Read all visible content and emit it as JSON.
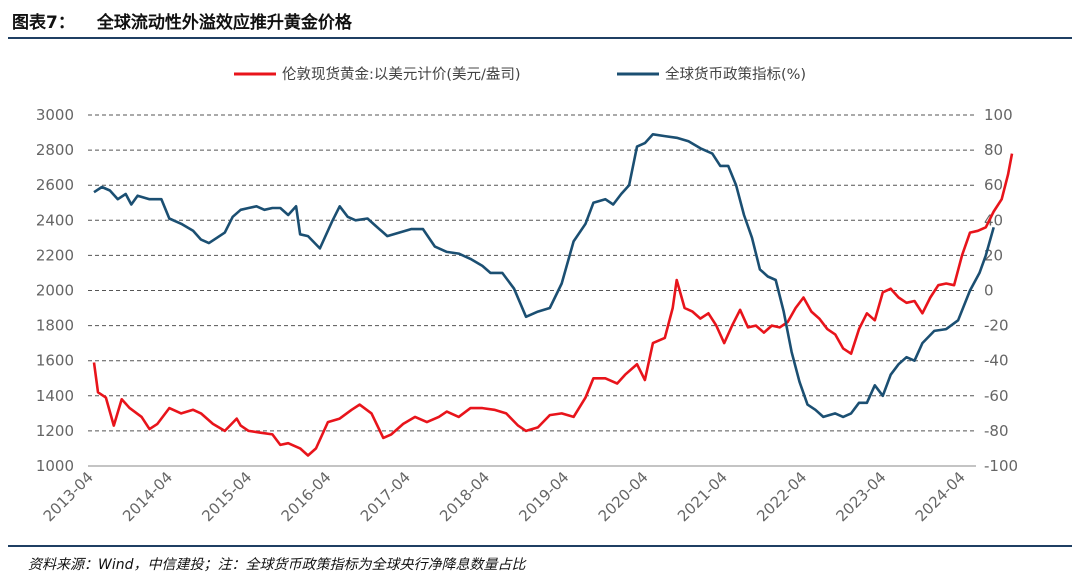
{
  "header": {
    "figure_no": "图表7：",
    "title": "全球流动性外溢效应推升黄金价格"
  },
  "footer": {
    "source": "资料来源：Wind，中信建投；注：全球货币政策指标为全球央行净降息数量占比"
  },
  "chart_data": {
    "type": "line",
    "legend_position": "top-center",
    "grid": "horizontal-dashed",
    "colors": {
      "gold": "#e8141b",
      "policy": "#1b4f72",
      "grid": "#555555",
      "tick_text": "#666666"
    },
    "x_ticks": [
      "2013-04",
      "2014-04",
      "2015-04",
      "2016-04",
      "2017-04",
      "2018-04",
      "2019-04",
      "2020-04",
      "2021-04",
      "2022-04",
      "2023-04",
      "2024-04"
    ],
    "x_range": [
      2013.25,
      2024.83
    ],
    "y_left": {
      "min": 1000,
      "max": 3000,
      "ticks": [
        1000,
        1200,
        1400,
        1600,
        1800,
        2000,
        2200,
        2400,
        2600,
        2800,
        3000
      ]
    },
    "y_right": {
      "min": -100,
      "max": 100,
      "ticks": [
        -100,
        -80,
        -60,
        -40,
        -20,
        0,
        20,
        40,
        60,
        80,
        100
      ]
    },
    "series": [
      {
        "name": "伦敦现货黄金:以美元计价(美元/盎司)",
        "axis": "left",
        "color": "#e8141b",
        "points": [
          [
            2013.25,
            1590
          ],
          [
            2013.3,
            1420
          ],
          [
            2013.4,
            1390
          ],
          [
            2013.5,
            1230
          ],
          [
            2013.6,
            1380
          ],
          [
            2013.7,
            1330
          ],
          [
            2013.85,
            1280
          ],
          [
            2013.95,
            1210
          ],
          [
            2014.05,
            1240
          ],
          [
            2014.2,
            1330
          ],
          [
            2014.35,
            1300
          ],
          [
            2014.5,
            1320
          ],
          [
            2014.6,
            1300
          ],
          [
            2014.75,
            1240
          ],
          [
            2014.9,
            1200
          ],
          [
            2015.05,
            1270
          ],
          [
            2015.1,
            1230
          ],
          [
            2015.2,
            1200
          ],
          [
            2015.35,
            1190
          ],
          [
            2015.5,
            1180
          ],
          [
            2015.6,
            1120
          ],
          [
            2015.7,
            1130
          ],
          [
            2015.85,
            1100
          ],
          [
            2015.95,
            1060
          ],
          [
            2016.05,
            1100
          ],
          [
            2016.2,
            1250
          ],
          [
            2016.35,
            1270
          ],
          [
            2016.5,
            1320
          ],
          [
            2016.6,
            1350
          ],
          [
            2016.75,
            1300
          ],
          [
            2016.9,
            1160
          ],
          [
            2017.0,
            1180
          ],
          [
            2017.15,
            1240
          ],
          [
            2017.3,
            1280
          ],
          [
            2017.45,
            1250
          ],
          [
            2017.6,
            1280
          ],
          [
            2017.7,
            1310
          ],
          [
            2017.85,
            1280
          ],
          [
            2018.0,
            1330
          ],
          [
            2018.15,
            1330
          ],
          [
            2018.3,
            1320
          ],
          [
            2018.45,
            1300
          ],
          [
            2018.6,
            1230
          ],
          [
            2018.7,
            1200
          ],
          [
            2018.85,
            1220
          ],
          [
            2019.0,
            1290
          ],
          [
            2019.15,
            1300
          ],
          [
            2019.3,
            1280
          ],
          [
            2019.45,
            1390
          ],
          [
            2019.55,
            1500
          ],
          [
            2019.7,
            1500
          ],
          [
            2019.85,
            1470
          ],
          [
            2019.95,
            1520
          ],
          [
            2020.1,
            1580
          ],
          [
            2020.2,
            1490
          ],
          [
            2020.3,
            1700
          ],
          [
            2020.45,
            1730
          ],
          [
            2020.55,
            1900
          ],
          [
            2020.6,
            2060
          ],
          [
            2020.7,
            1900
          ],
          [
            2020.8,
            1880
          ],
          [
            2020.9,
            1840
          ],
          [
            2021.0,
            1870
          ],
          [
            2021.1,
            1800
          ],
          [
            2021.2,
            1700
          ],
          [
            2021.3,
            1800
          ],
          [
            2021.4,
            1890
          ],
          [
            2021.5,
            1790
          ],
          [
            2021.6,
            1800
          ],
          [
            2021.7,
            1760
          ],
          [
            2021.8,
            1800
          ],
          [
            2021.9,
            1790
          ],
          [
            2022.0,
            1820
          ],
          [
            2022.1,
            1900
          ],
          [
            2022.2,
            1960
          ],
          [
            2022.3,
            1880
          ],
          [
            2022.4,
            1840
          ],
          [
            2022.5,
            1780
          ],
          [
            2022.6,
            1750
          ],
          [
            2022.7,
            1670
          ],
          [
            2022.8,
            1640
          ],
          [
            2022.9,
            1780
          ],
          [
            2023.0,
            1870
          ],
          [
            2023.1,
            1830
          ],
          [
            2023.2,
            1990
          ],
          [
            2023.3,
            2010
          ],
          [
            2023.4,
            1960
          ],
          [
            2023.5,
            1930
          ],
          [
            2023.6,
            1940
          ],
          [
            2023.7,
            1870
          ],
          [
            2023.8,
            1960
          ],
          [
            2023.9,
            2030
          ],
          [
            2024.0,
            2040
          ],
          [
            2024.1,
            2030
          ],
          [
            2024.2,
            2200
          ],
          [
            2024.3,
            2330
          ],
          [
            2024.4,
            2340
          ],
          [
            2024.5,
            2360
          ],
          [
            2024.6,
            2450
          ],
          [
            2024.7,
            2520
          ],
          [
            2024.78,
            2660
          ],
          [
            2024.83,
            2780
          ]
        ]
      },
      {
        "name": "全球货币政策指标(%)",
        "axis": "right",
        "color": "#1b4f72",
        "points": [
          [
            2013.25,
            56
          ],
          [
            2013.35,
            59
          ],
          [
            2013.45,
            57
          ],
          [
            2013.55,
            52
          ],
          [
            2013.65,
            55
          ],
          [
            2013.72,
            49
          ],
          [
            2013.8,
            54
          ],
          [
            2013.95,
            52
          ],
          [
            2014.1,
            52
          ],
          [
            2014.2,
            41
          ],
          [
            2014.35,
            38
          ],
          [
            2014.5,
            34
          ],
          [
            2014.6,
            29
          ],
          [
            2014.7,
            27
          ],
          [
            2014.8,
            30
          ],
          [
            2014.9,
            33
          ],
          [
            2015.0,
            42
          ],
          [
            2015.1,
            46
          ],
          [
            2015.2,
            47
          ],
          [
            2015.3,
            48
          ],
          [
            2015.4,
            46
          ],
          [
            2015.5,
            47
          ],
          [
            2015.6,
            47
          ],
          [
            2015.7,
            43
          ],
          [
            2015.8,
            48
          ],
          [
            2015.85,
            32
          ],
          [
            2015.95,
            31
          ],
          [
            2016.1,
            24
          ],
          [
            2016.25,
            39
          ],
          [
            2016.35,
            48
          ],
          [
            2016.45,
            42
          ],
          [
            2016.55,
            40
          ],
          [
            2016.7,
            41
          ],
          [
            2016.8,
            37
          ],
          [
            2016.95,
            31
          ],
          [
            2017.1,
            33
          ],
          [
            2017.25,
            35
          ],
          [
            2017.4,
            35
          ],
          [
            2017.55,
            25
          ],
          [
            2017.7,
            22
          ],
          [
            2017.85,
            21
          ],
          [
            2018.0,
            18
          ],
          [
            2018.15,
            14
          ],
          [
            2018.25,
            10
          ],
          [
            2018.4,
            10
          ],
          [
            2018.55,
            1
          ],
          [
            2018.7,
            -15
          ],
          [
            2018.85,
            -12
          ],
          [
            2019.0,
            -10
          ],
          [
            2019.15,
            4
          ],
          [
            2019.3,
            28
          ],
          [
            2019.45,
            38
          ],
          [
            2019.55,
            50
          ],
          [
            2019.7,
            52
          ],
          [
            2019.8,
            49
          ],
          [
            2019.9,
            55
          ],
          [
            2020.0,
            60
          ],
          [
            2020.1,
            82
          ],
          [
            2020.2,
            84
          ],
          [
            2020.3,
            89
          ],
          [
            2020.45,
            88
          ],
          [
            2020.6,
            87
          ],
          [
            2020.75,
            85
          ],
          [
            2020.9,
            81
          ],
          [
            2021.05,
            78
          ],
          [
            2021.15,
            71
          ],
          [
            2021.25,
            71
          ],
          [
            2021.35,
            60
          ],
          [
            2021.45,
            43
          ],
          [
            2021.55,
            30
          ],
          [
            2021.65,
            12
          ],
          [
            2021.75,
            8
          ],
          [
            2021.85,
            6
          ],
          [
            2021.95,
            -12
          ],
          [
            2022.05,
            -35
          ],
          [
            2022.15,
            -52
          ],
          [
            2022.25,
            -65
          ],
          [
            2022.35,
            -68
          ],
          [
            2022.45,
            -72
          ],
          [
            2022.6,
            -70
          ],
          [
            2022.7,
            -72
          ],
          [
            2022.8,
            -70
          ],
          [
            2022.9,
            -64
          ],
          [
            2023.0,
            -64
          ],
          [
            2023.1,
            -54
          ],
          [
            2023.2,
            -60
          ],
          [
            2023.3,
            -48
          ],
          [
            2023.4,
            -42
          ],
          [
            2023.5,
            -38
          ],
          [
            2023.6,
            -40
          ],
          [
            2023.7,
            -30
          ],
          [
            2023.85,
            -23
          ],
          [
            2024.0,
            -22
          ],
          [
            2024.15,
            -17
          ],
          [
            2024.3,
            0
          ],
          [
            2024.42,
            10
          ],
          [
            2024.5,
            20
          ],
          [
            2024.6,
            36
          ]
        ]
      }
    ]
  }
}
